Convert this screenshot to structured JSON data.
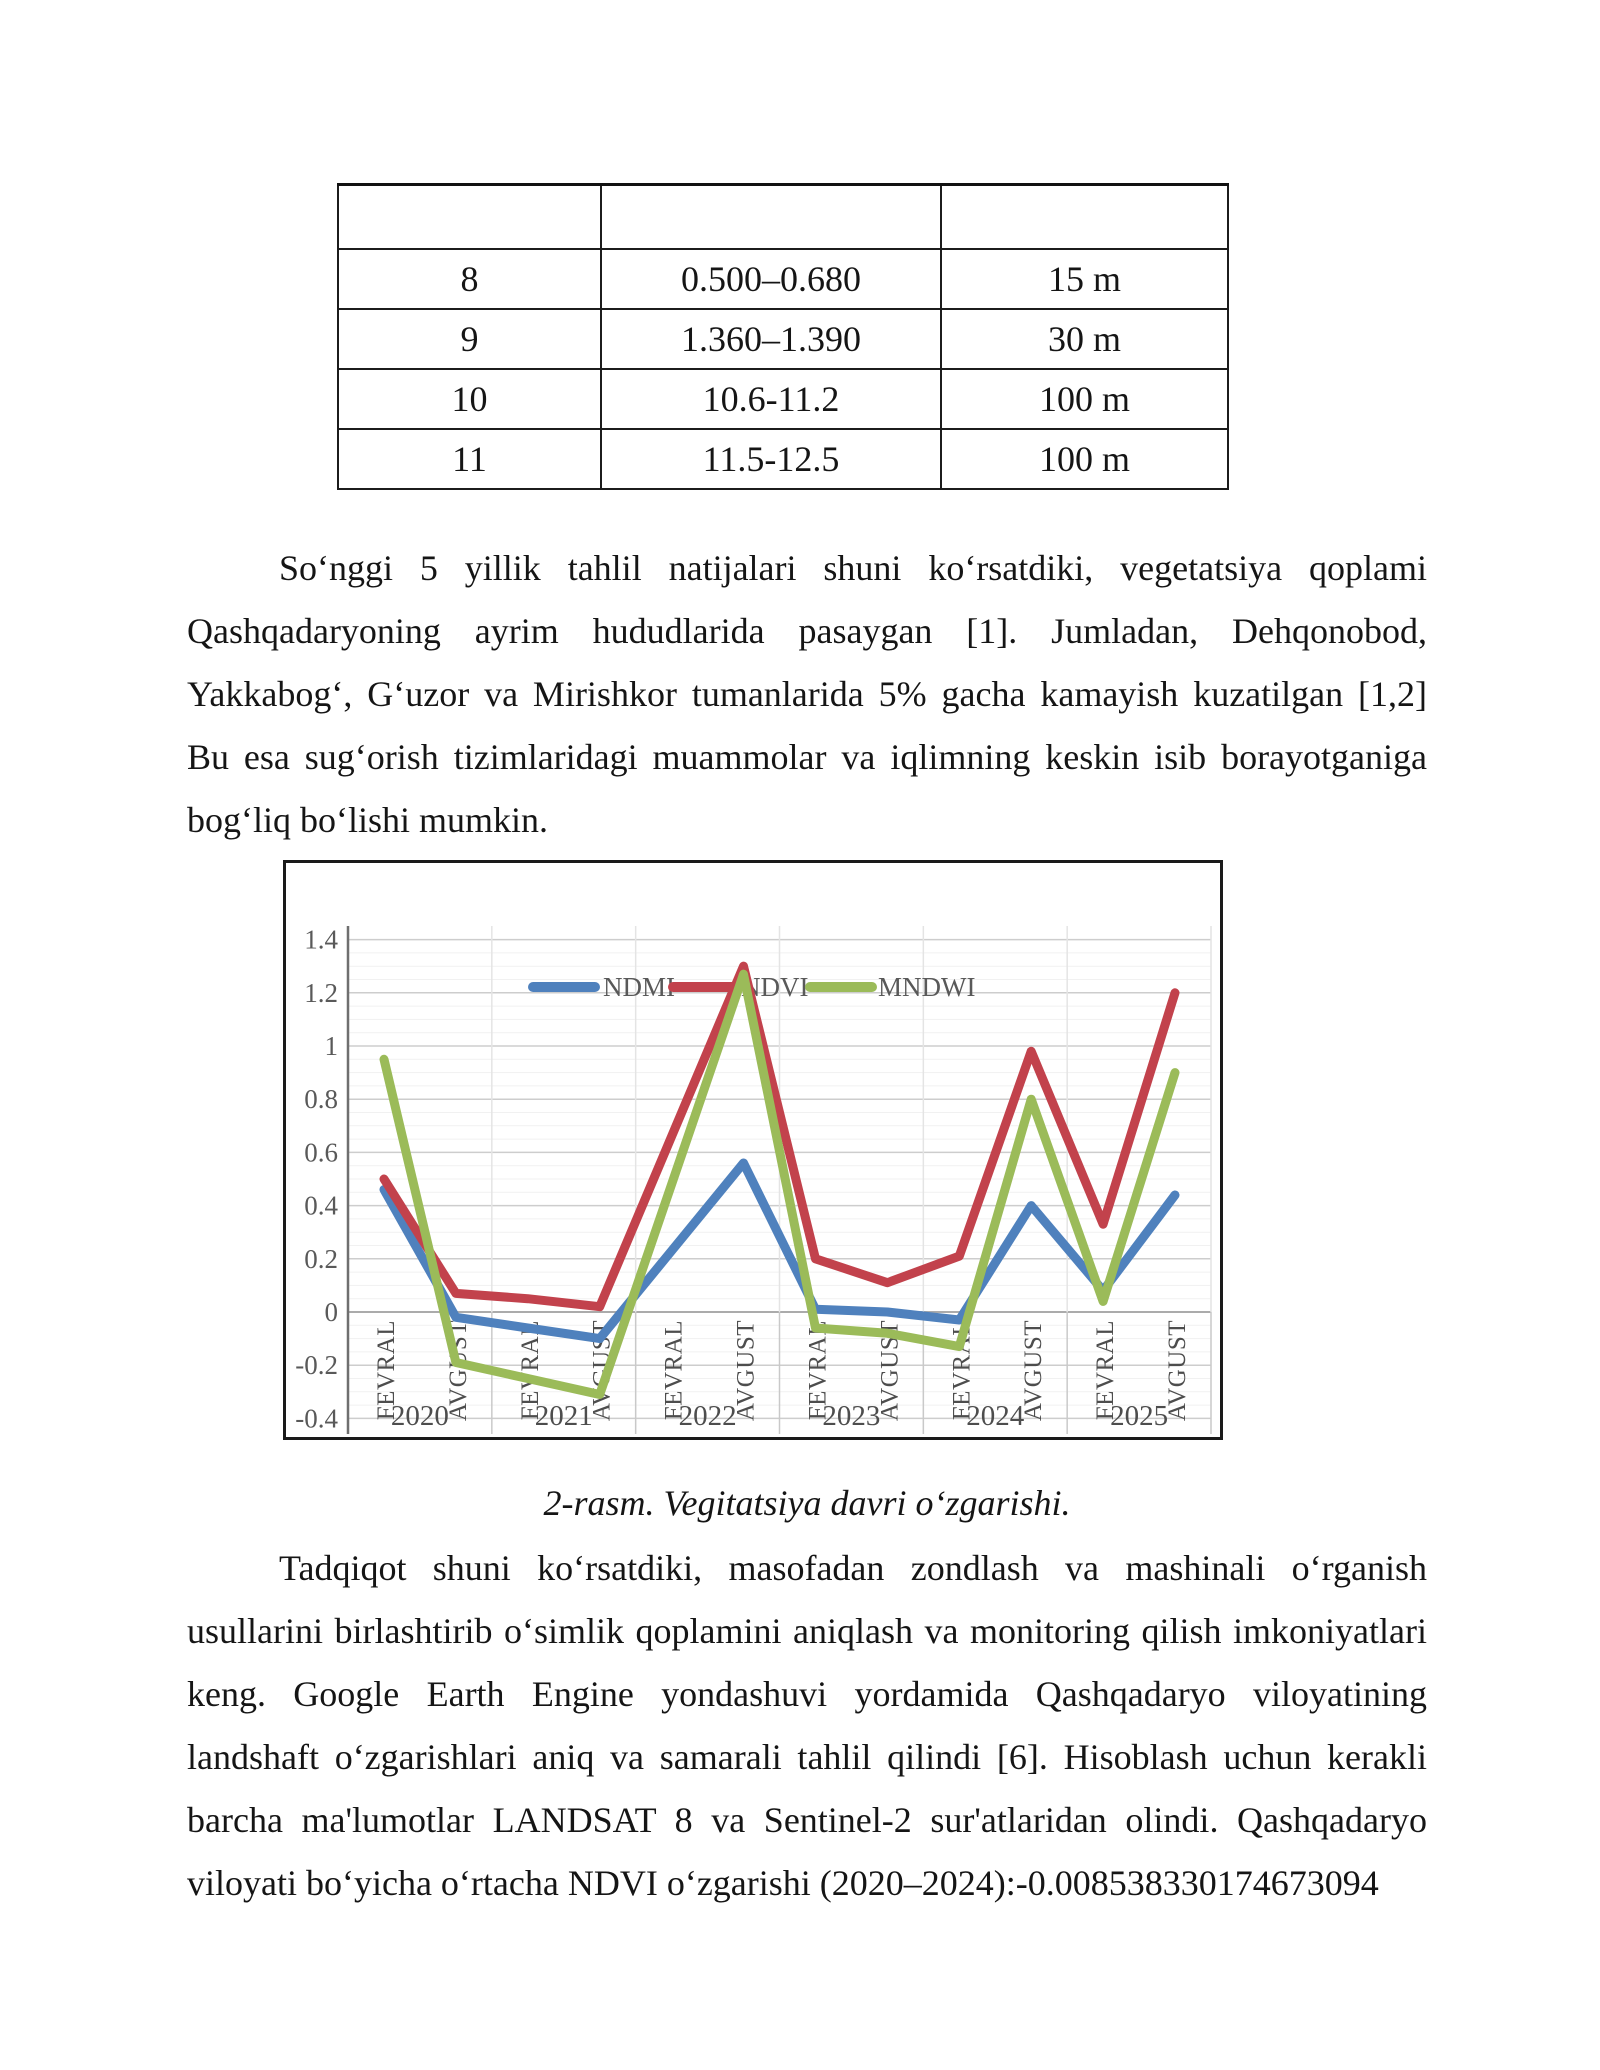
{
  "document": {
    "table": {
      "columns": [
        "",
        "",
        ""
      ],
      "rows": [
        [
          "8",
          "0.500–0.680",
          "15 m"
        ],
        [
          "9",
          "1.360–1.390",
          "30 m"
        ],
        [
          "10",
          "10.6-11.2",
          "100 m"
        ],
        [
          "11",
          "11.5-12.5",
          "100 m"
        ]
      ]
    },
    "paragraph1_lines": [
      "Soʻnggi 5 yillik tahlil natijalari shuni koʻrsatdiki, vegetatsiya qoplami",
      "Qashqadaryoning ayrim hududlarida pasaygan [1]. Jumladan, Dehqonobod,",
      "Yakkabogʻ, Gʻuzor va Mirishkor tumanlarida 5% gacha kamayish kuzatilgan [1,2]",
      "Bu esa sugʻorish tizimlaridagi muammolar va iqlimning keskin isib borayotganiga",
      "bogʻliq boʻlishi mumkin."
    ],
    "figure_caption": "2-rasm. Vegitatsiya davri oʻzgarishi.",
    "paragraph2_lines": [
      "Tadqiqot shuni koʻrsatdiki, masofadan zondlash va mashinali oʻrganish",
      "usullarini birlashtirib oʻsimlik qoplamini aniqlash va monitoring qilish imkoniyatlari",
      "keng. Google Earth Engine yondashuvi yordamida Qashqadaryo viloyatining",
      "landshaft oʻzgarishlari aniq va samarali tahlil qilindi [6]. Hisoblash uchun kerakli",
      "barcha ma'lumotlar LANDSAT 8 va Sentinel-2 sur'atlaridan olindi. Qashqadaryo",
      "viloyati boʻyicha oʻrtacha NDVI oʻzgarishi (2020–2024):-0.008538330174673094"
    ]
  },
  "chart_data": {
    "type": "line",
    "title": "",
    "xlabel": "",
    "ylabel": "",
    "categories": [
      "FEVRAL",
      "AVGUST",
      "FEVRAL",
      "AVGUST",
      "FEVRAL",
      "AVGUST",
      "FEVRAL",
      "AVGUST",
      "FEVRAL",
      "AVGUST",
      "FEVRAL",
      "AVGUST"
    ],
    "year_groups": [
      "2020",
      "2021",
      "2022",
      "2023",
      "2024",
      "2025"
    ],
    "series": [
      {
        "name": "NDMI",
        "color": "#4F81BD",
        "values": [
          0.46,
          -0.02,
          -0.06,
          -0.1,
          0.23,
          0.56,
          0.01,
          0.0,
          -0.03,
          0.4,
          0.08,
          0.44
        ]
      },
      {
        "name": "NDVI",
        "color": "#C2424C",
        "values": [
          0.5,
          0.07,
          0.05,
          0.02,
          0.66,
          1.3,
          0.2,
          0.11,
          0.21,
          0.98,
          0.33,
          1.2
        ]
      },
      {
        "name": "MNDWI",
        "color": "#9BBB59",
        "values": [
          0.95,
          -0.19,
          -0.25,
          -0.31,
          0.48,
          1.27,
          -0.06,
          -0.08,
          -0.13,
          0.8,
          0.04,
          0.9
        ]
      }
    ],
    "ylim": [
      -0.4,
      1.4
    ],
    "ytick_step": 0.2,
    "yticks": [
      "-0.4",
      "-0.2",
      "0",
      "0.2",
      "0.4",
      "0.6",
      "0.8",
      "1",
      "1.2",
      "1.4"
    ],
    "grid": true,
    "minor_grid": true,
    "legend_position": "inside-top-center",
    "axis_text_color": "#595959"
  }
}
